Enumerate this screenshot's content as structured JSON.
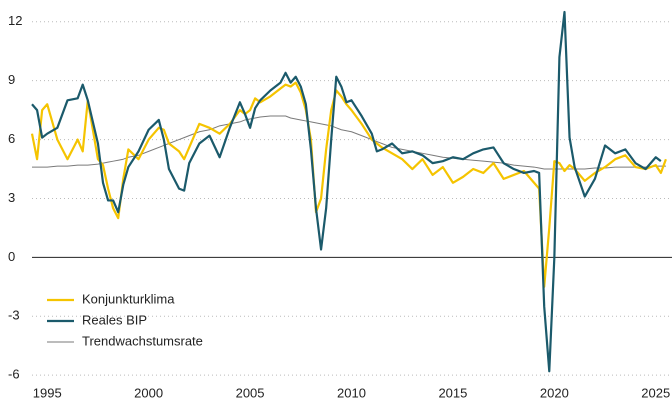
{
  "chart_data": {
    "type": "line",
    "x": [
      1994.25,
      1994.5,
      1994.75,
      1995,
      1995.5,
      1996,
      1996.5,
      1996.75,
      1997,
      1997.5,
      1997.75,
      1998,
      1998.25,
      1998.5,
      1998.75,
      1999,
      1999.5,
      2000,
      2000.5,
      2000.75,
      2001,
      2001.5,
      2001.75,
      2002,
      2002.5,
      2003,
      2003.5,
      2004,
      2004.5,
      2004.75,
      2005,
      2005.25,
      2005.5,
      2006,
      2006.5,
      2006.75,
      2007,
      2007.25,
      2007.5,
      2007.75,
      2008,
      2008.25,
      2008.5,
      2008.75,
      2009,
      2009.25,
      2009.5,
      2009.75,
      2010,
      2010.5,
      2011,
      2011.25,
      2011.5,
      2012,
      2012.5,
      2013,
      2013.5,
      2014,
      2014.5,
      2015,
      2015.5,
      2016,
      2016.5,
      2017,
      2017.5,
      2018,
      2018.5,
      2019,
      2019.25,
      2019.5,
      2019.75,
      2020,
      2020.25,
      2020.5,
      2020.75,
      2021,
      2021.5,
      2022,
      2022.5,
      2023,
      2023.5,
      2024,
      2024.5,
      2025,
      2025.25,
      2025.5
    ],
    "series": [
      {
        "name": "Konjunkturklima",
        "color": "#f5c400",
        "width": 2.2,
        "values": [
          6.3,
          5.0,
          7.5,
          7.8,
          6.0,
          5.0,
          6.0,
          5.4,
          8.0,
          5.0,
          4.7,
          3.5,
          2.5,
          2.0,
          4.0,
          5.5,
          5.0,
          6.0,
          6.6,
          6.5,
          5.8,
          5.4,
          5.0,
          5.6,
          6.8,
          6.6,
          6.3,
          6.8,
          7.5,
          7.3,
          7.5,
          8.1,
          7.9,
          8.2,
          8.6,
          8.8,
          8.7,
          8.9,
          8.4,
          7.5,
          6.0,
          2.3,
          3.0,
          5.5,
          7.5,
          8.5,
          8.2,
          7.8,
          7.5,
          6.8,
          6.0,
          5.8,
          5.6,
          5.3,
          5.0,
          4.5,
          5.0,
          4.2,
          4.6,
          3.8,
          4.1,
          4.5,
          4.3,
          4.8,
          4.0,
          4.2,
          4.4,
          3.8,
          3.5,
          -1.5,
          1.5,
          4.9,
          4.8,
          4.4,
          4.7,
          4.5,
          3.9,
          4.3,
          4.6,
          5.0,
          5.2,
          4.6,
          4.5,
          4.7,
          4.3,
          5.0
        ]
      },
      {
        "name": "Reales BIP",
        "color": "#1b5a6b",
        "width": 2.2,
        "values": [
          7.8,
          7.5,
          6.1,
          6.3,
          6.6,
          8.0,
          8.1,
          8.8,
          8.0,
          5.8,
          3.8,
          2.9,
          2.9,
          2.3,
          3.7,
          4.6,
          5.4,
          6.5,
          7.0,
          6.0,
          4.5,
          3.5,
          3.4,
          4.8,
          5.8,
          6.2,
          5.1,
          6.6,
          7.9,
          7.3,
          6.6,
          7.6,
          8.0,
          8.5,
          8.9,
          9.4,
          8.9,
          9.2,
          8.7,
          7.8,
          5.5,
          2.5,
          0.4,
          2.5,
          6.0,
          9.2,
          8.7,
          7.9,
          8.0,
          7.2,
          6.3,
          5.4,
          5.5,
          5.8,
          5.3,
          5.4,
          5.2,
          4.8,
          4.9,
          5.1,
          5.0,
          5.3,
          5.5,
          5.6,
          4.8,
          4.5,
          4.3,
          4.4,
          4.3,
          -2.5,
          -5.8,
          0.0,
          10.2,
          12.5,
          6.1,
          4.6,
          3.1,
          4.0,
          5.7,
          5.3,
          5.5,
          4.8,
          4.5,
          5.1,
          4.9,
          null
        ]
      },
      {
        "name": "Trendwachstumsrate",
        "color": "#7a7a7a",
        "width": 1,
        "values": [
          4.6,
          4.6,
          4.6,
          4.6,
          4.65,
          4.65,
          4.7,
          4.7,
          4.7,
          4.75,
          4.8,
          4.85,
          4.9,
          4.95,
          5.0,
          5.1,
          5.2,
          5.4,
          5.6,
          5.7,
          5.8,
          6.0,
          6.1,
          6.2,
          6.4,
          6.5,
          6.7,
          6.8,
          6.9,
          7.0,
          7.05,
          7.1,
          7.15,
          7.2,
          7.2,
          7.2,
          7.1,
          7.05,
          7.0,
          6.95,
          6.9,
          6.85,
          6.8,
          6.75,
          6.7,
          6.6,
          6.5,
          6.45,
          6.4,
          6.2,
          6.0,
          5.9,
          5.8,
          5.6,
          5.5,
          5.4,
          5.3,
          5.2,
          5.1,
          5.05,
          5.0,
          4.95,
          4.9,
          4.85,
          4.8,
          4.7,
          4.65,
          4.6,
          4.55,
          4.5,
          4.5,
          4.5,
          4.5,
          4.5,
          4.5,
          4.5,
          4.5,
          4.55,
          4.55,
          4.6,
          4.6,
          4.6,
          4.6,
          4.65,
          4.65,
          4.65
        ]
      }
    ],
    "xlim": [
      1994.25,
      2025.8
    ],
    "xticks": [
      1995,
      2000,
      2005,
      2010,
      2015,
      2020,
      2025
    ],
    "ylim": [
      -6.5,
      12.6
    ],
    "yticks": [
      -6,
      -3,
      0,
      3,
      6,
      9,
      12
    ],
    "grid": true,
    "legend": "lower left"
  }
}
